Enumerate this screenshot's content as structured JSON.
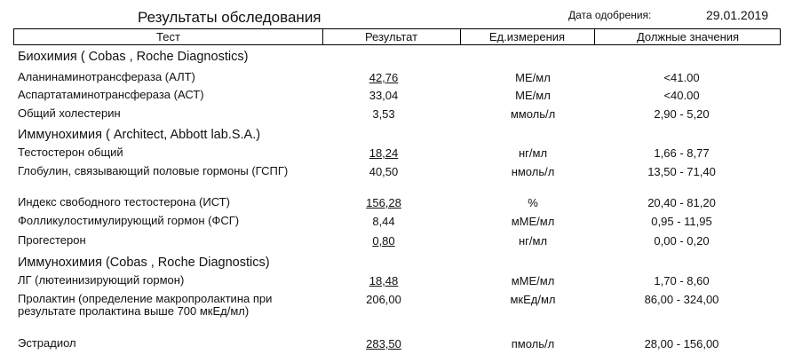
{
  "title": "Результаты обследования",
  "approval_date_label": "Дата одобрения:",
  "approval_date": "29.01.2019",
  "columns": [
    "Тест",
    "Результат",
    "Ед.измерения",
    "Должные значения"
  ],
  "sections": [
    {
      "title": "Биохимия ( Cobas , Roche Diagnostics)",
      "rows": [
        {
          "test": "Аланинаминотрансфераза (АЛТ)",
          "result": "42,76",
          "flagged": true,
          "unit": "МЕ/мл",
          "ref": "<41.00"
        },
        {
          "test": "Аспартатаминотрансфераза (АСТ)",
          "result": "33,04",
          "flagged": false,
          "unit": "МЕ/мл",
          "ref": "<40.00"
        },
        {
          "test": "Общий холестерин",
          "result": "3,53",
          "flagged": false,
          "unit": "ммоль/л",
          "ref": "2,90 - 5,20"
        }
      ]
    },
    {
      "title": "Иммунохимия ( Architect, Abbott lab.S.A.)",
      "rows": [
        {
          "test": "Тестостерон общий",
          "result": "18,24",
          "flagged": true,
          "unit": "нг/мл",
          "ref": "1,66 - 8,77"
        },
        {
          "test": "Глобулин, связывающий половые гормоны (ГСПГ)",
          "result": "40,50",
          "flagged": false,
          "unit": "нмоль/л",
          "ref": "13,50 - 71,40"
        },
        {
          "test": "Индекс свободного тестостерона (ИСТ)",
          "result": "156,28",
          "flagged": true,
          "unit": "%",
          "ref": "20,40 - 81,20"
        },
        {
          "test": "Фолликулостимулирующий гормон (ФСГ)",
          "result": "8,44",
          "flagged": false,
          "unit": "мМЕ/мл",
          "ref": "0,95 - 11,95"
        },
        {
          "test": "Прогестерон",
          "result": "0,80",
          "flagged": true,
          "unit": "нг/мл",
          "ref": "0,00 - 0,20"
        }
      ]
    },
    {
      "title": "Иммунохимия (Cobas , Roche Diagnostics)",
      "rows": [
        {
          "test": "ЛГ (лютеинизирующий гормон)",
          "result": "18,48",
          "flagged": true,
          "unit": "мМЕ/мл",
          "ref": "1,70 - 8,60"
        },
        {
          "test": "Пролактин (определение макропролактина при результате пролактина выше 700 мкЕд/мл)",
          "result": "206,00",
          "flagged": false,
          "unit": "мкЕд/мл",
          "ref": "86,00 - 324,00"
        },
        {
          "test": "Эстрадиол",
          "result": "283,50",
          "flagged": true,
          "unit": "пмоль/л",
          "ref": "28,00 - 156,00"
        }
      ]
    }
  ]
}
